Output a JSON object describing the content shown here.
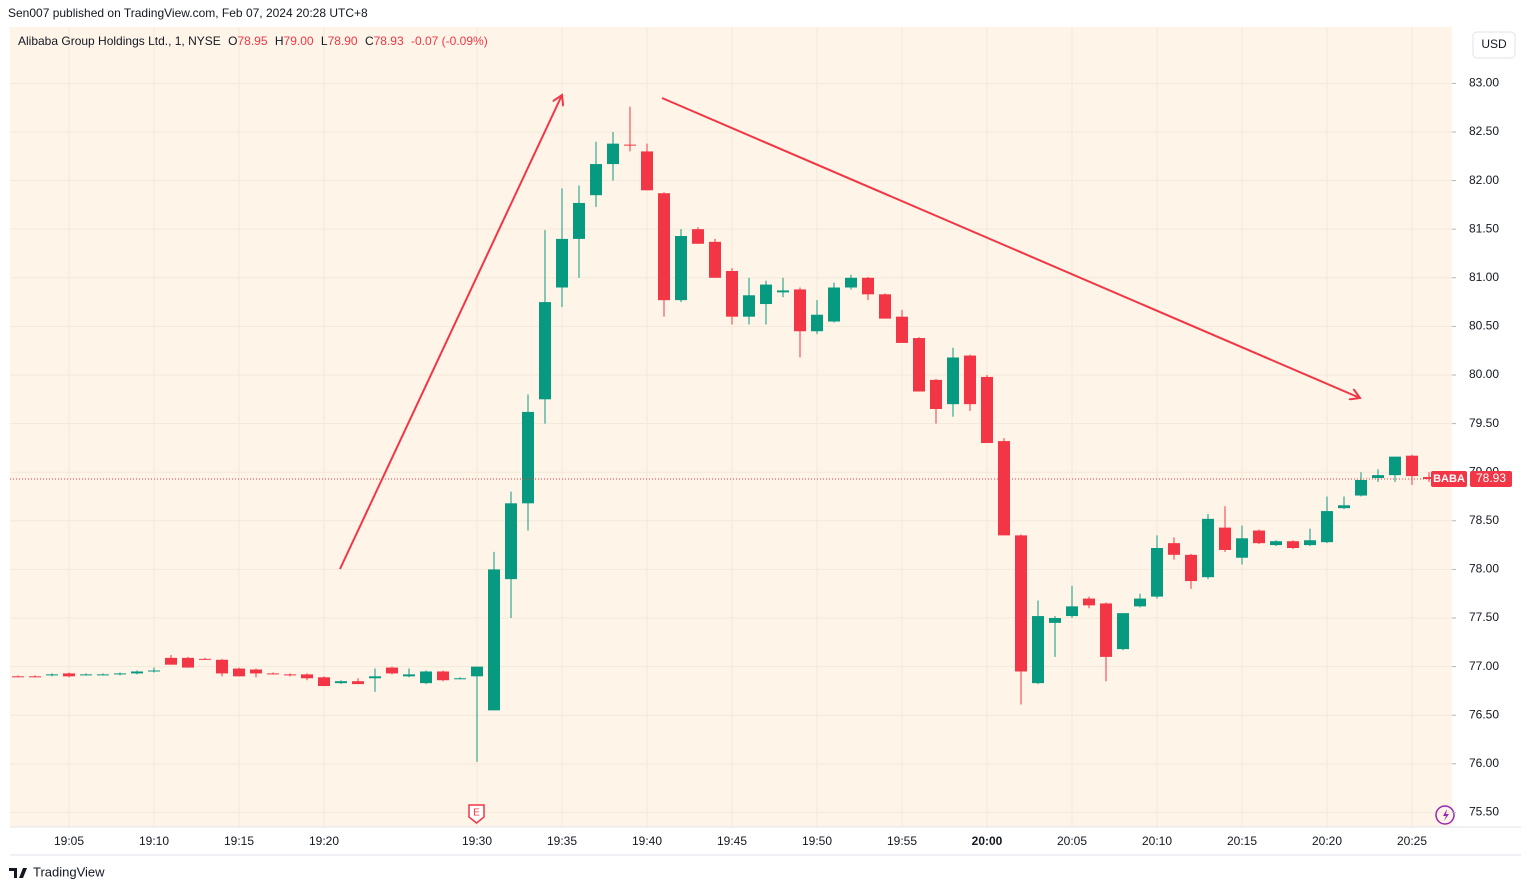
{
  "header": "Sen007 published on TradingView.com, Feb 07, 2024 20:28 UTC+8",
  "legend": {
    "name": "Alibaba Group Holdings Ltd., 1, NYSE",
    "fields": [
      {
        "key": "O",
        "value": "78.95"
      },
      {
        "key": "H",
        "value": "79.00"
      },
      {
        "key": "L",
        "value": "78.90"
      },
      {
        "key": "C",
        "value": "78.93"
      }
    ],
    "change": "-0.07 (-0.09%)"
  },
  "currency": "USD",
  "symbol_tag": "BABA",
  "earnings_marker": "E",
  "footer": "TradingView",
  "chart_data": {
    "type": "candlestick",
    "categories": [
      null,
      null,
      null,
      "19:05",
      null,
      null,
      null,
      null,
      "19:10",
      null,
      null,
      null,
      null,
      "19:15",
      null,
      null,
      null,
      null,
      "19:20",
      null,
      null,
      null,
      null,
      null,
      null,
      null,
      null,
      "19:30",
      null,
      null,
      null,
      null,
      "19:35",
      null,
      null,
      null,
      null,
      "19:40",
      null,
      null,
      null,
      null,
      "19:45",
      null,
      null,
      null,
      null,
      "19:50",
      null,
      null,
      null,
      null,
      "19:55",
      null,
      null,
      null,
      null,
      "20:00",
      null,
      null,
      null,
      null,
      "20:05",
      null,
      null,
      null,
      null,
      "20:10",
      null,
      null,
      null,
      null,
      "20:15",
      null,
      null,
      null,
      null,
      "20:20",
      null,
      null,
      null,
      null,
      "20:25",
      null
    ],
    "open": [
      76.9,
      76.9,
      76.91,
      76.93,
      76.92,
      76.92,
      76.92,
      76.93,
      76.95,
      77.09,
      77.09,
      77.08,
      77.07,
      76.98,
      76.97,
      76.93,
      76.92,
      76.92,
      76.89,
      76.83,
      76.85,
      76.88,
      76.99,
      76.9,
      76.83,
      76.95,
      76.88,
      76.9,
      76.55,
      77.9,
      78.68,
      79.75,
      80.9,
      81.4,
      81.85,
      82.17,
      82.37,
      82.3,
      81.87,
      80.77,
      81.5,
      81.37,
      81.07,
      80.6,
      80.73,
      80.85,
      80.88,
      80.45,
      80.55,
      80.9,
      81.0,
      80.83,
      80.6,
      80.38,
      79.95,
      79.7,
      80.2,
      79.98,
      79.32,
      78.35,
      76.83,
      77.45,
      77.52,
      77.7,
      77.65,
      77.18,
      77.62,
      77.72,
      78.27,
      78.15,
      77.92,
      78.43,
      78.12,
      78.4,
      78.25,
      78.29,
      78.25,
      78.28,
      78.63,
      78.76,
      78.94,
      78.97,
      79.17,
      78.95
    ],
    "high": [
      76.91,
      76.91,
      76.93,
      76.94,
      76.93,
      76.93,
      76.94,
      76.96,
      76.99,
      77.12,
      77.1,
      77.09,
      77.08,
      76.99,
      76.98,
      76.94,
      76.93,
      76.93,
      76.9,
      76.86,
      76.88,
      76.98,
      77.0,
      76.98,
      76.96,
      76.96,
      76.89,
      77.0,
      78.18,
      78.8,
      79.8,
      81.49,
      81.92,
      81.95,
      82.4,
      82.5,
      82.76,
      82.38,
      81.88,
      81.5,
      81.52,
      81.4,
      81.1,
      81.0,
      80.97,
      81.0,
      80.9,
      80.77,
      80.95,
      81.03,
      81.01,
      80.84,
      80.67,
      80.39,
      79.96,
      80.28,
      80.21,
      80.0,
      79.35,
      78.36,
      77.68,
      77.52,
      77.83,
      77.72,
      77.66,
      77.55,
      77.75,
      78.35,
      78.33,
      78.16,
      78.57,
      78.65,
      78.45,
      78.41,
      78.3,
      78.3,
      78.42,
      78.75,
      78.75,
      79.0,
      79.03,
      79.16,
      79.18,
      79.0
    ],
    "low": [
      76.89,
      76.89,
      76.9,
      76.89,
      76.91,
      76.91,
      76.91,
      76.92,
      76.94,
      77.02,
      76.99,
      77.07,
      76.9,
      76.9,
      76.89,
      76.92,
      76.9,
      76.86,
      76.8,
      76.82,
      76.82,
      76.74,
      76.92,
      76.89,
      76.82,
      76.85,
      76.87,
      76.02,
      76.55,
      77.5,
      78.4,
      79.5,
      80.7,
      81.0,
      81.73,
      82.0,
      82.3,
      81.9,
      80.6,
      80.75,
      81.35,
      81.0,
      80.52,
      80.52,
      80.52,
      80.8,
      80.18,
      80.42,
      80.54,
      80.88,
      80.77,
      80.58,
      80.33,
      79.83,
      79.5,
      79.57,
      79.63,
      79.3,
      78.35,
      76.61,
      76.82,
      77.1,
      77.5,
      77.6,
      76.85,
      77.17,
      77.61,
      77.7,
      78.1,
      77.8,
      77.9,
      78.18,
      78.05,
      78.26,
      78.24,
      78.21,
      78.24,
      78.27,
      78.62,
      78.75,
      78.9,
      78.9,
      78.87,
      78.9
    ],
    "close": [
      76.89,
      76.89,
      76.92,
      76.9,
      76.92,
      76.92,
      76.93,
      76.95,
      76.96,
      77.02,
      76.99,
      77.07,
      76.93,
      76.9,
      76.93,
      76.92,
      76.91,
      76.88,
      76.8,
      76.85,
      76.82,
      76.9,
      76.93,
      76.92,
      76.95,
      76.86,
      76.88,
      77.0,
      78.0,
      78.68,
      79.62,
      80.75,
      81.4,
      81.77,
      82.17,
      82.38,
      82.36,
      81.9,
      80.77,
      81.43,
      81.35,
      81.0,
      80.6,
      80.82,
      80.93,
      80.87,
      80.45,
      80.62,
      80.9,
      81.0,
      80.83,
      80.58,
      80.33,
      79.83,
      79.65,
      80.18,
      79.7,
      79.3,
      78.35,
      76.95,
      77.52,
      77.5,
      77.62,
      77.63,
      77.1,
      77.55,
      77.7,
      78.22,
      78.15,
      77.88,
      78.52,
      78.2,
      78.32,
      78.27,
      78.29,
      78.22,
      78.3,
      78.6,
      78.66,
      78.92,
      78.97,
      79.16,
      78.96,
      78.93
    ],
    "up_color": "#089981",
    "down_color": "#f23645",
    "ylim": [
      75.35,
      83.58
    ],
    "yticks": [
      {
        "value": 75.5,
        "label": "75.50"
      },
      {
        "value": 76,
        "label": "76.00"
      },
      {
        "value": 76.5,
        "label": "76.50"
      },
      {
        "value": 77,
        "label": "77.00"
      },
      {
        "value": 77.5,
        "label": "77.50"
      },
      {
        "value": 78,
        "label": "78.00"
      },
      {
        "value": 78.5,
        "label": "78.50"
      },
      {
        "value": 79,
        "label": "79.00"
      },
      {
        "value": 79.5,
        "label": "79.50"
      },
      {
        "value": 80,
        "label": "80.00"
      },
      {
        "value": 80.5,
        "label": "80.50"
      },
      {
        "value": 81,
        "label": "81.00"
      },
      {
        "value": 81.5,
        "label": "81.50"
      },
      {
        "value": 82,
        "label": "82.00"
      },
      {
        "value": 82.5,
        "label": "82.50"
      },
      {
        "value": 83,
        "label": "83.00"
      }
    ],
    "grid": true,
    "last_price": 78.93
  }
}
